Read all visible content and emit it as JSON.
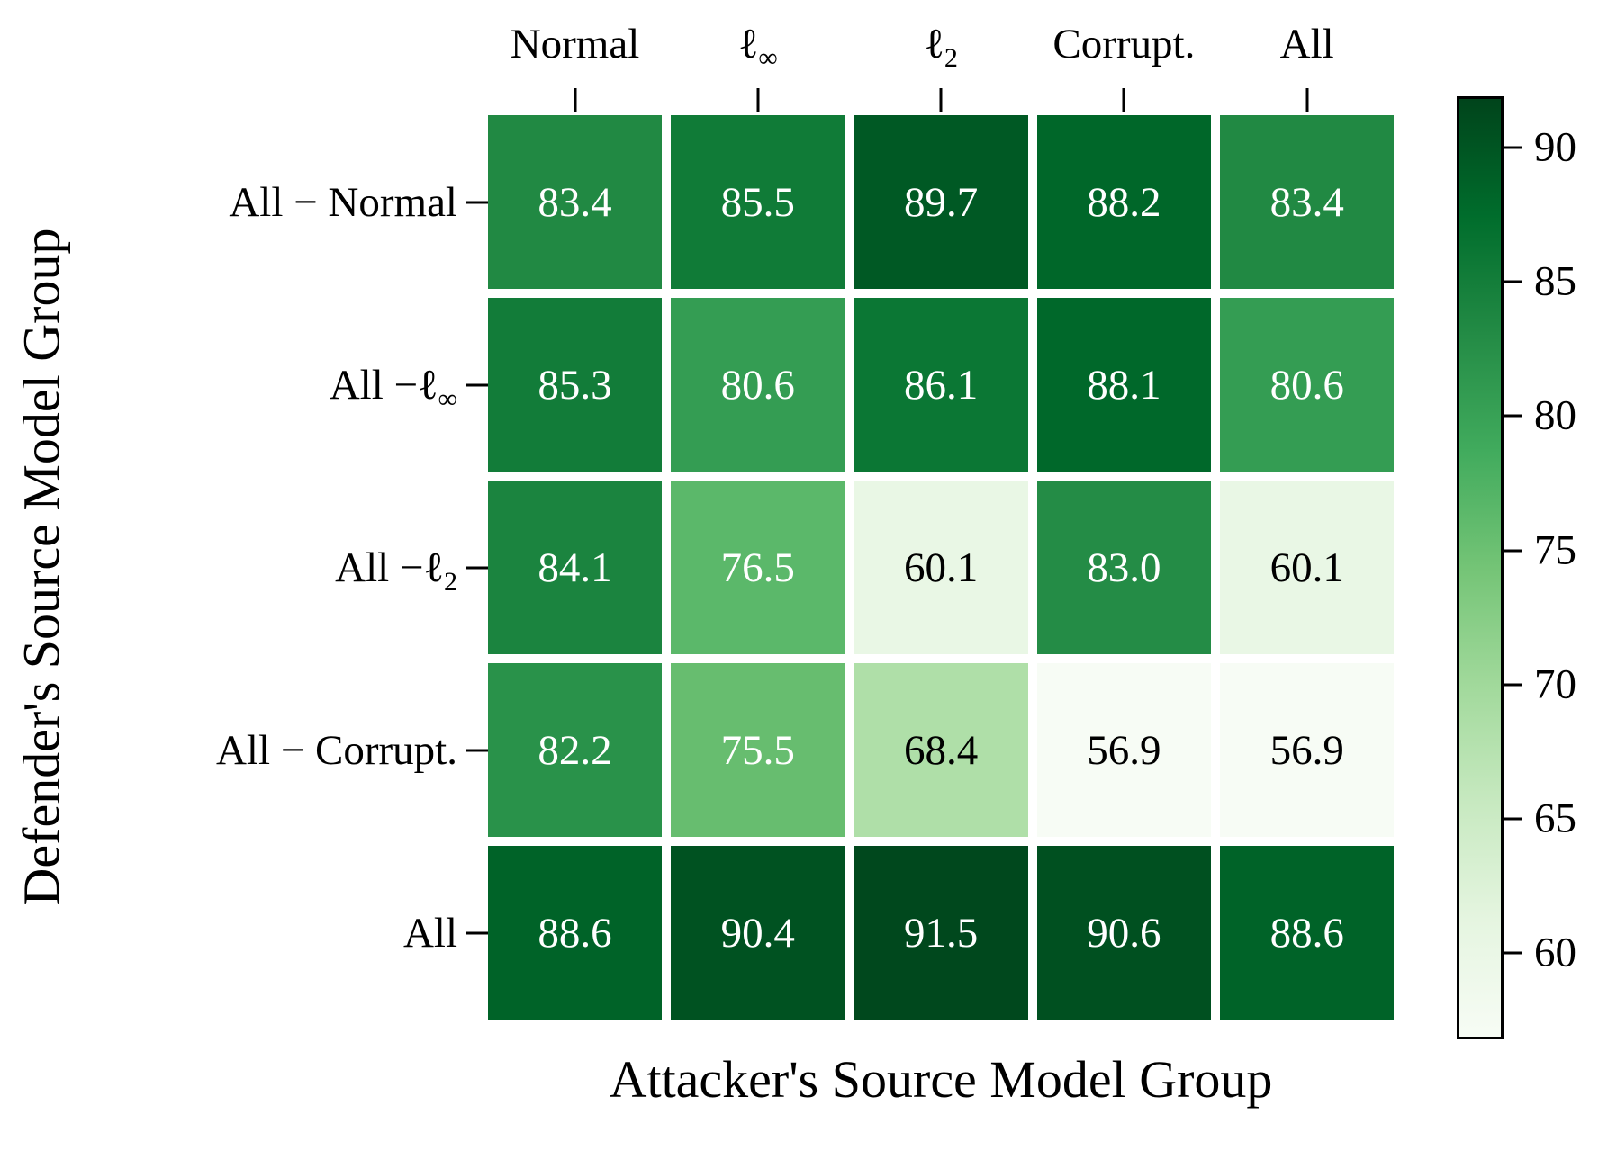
{
  "chart_data": {
    "type": "heatmap",
    "xlabel": "Attacker's Source Model Group",
    "ylabel": "Defender's Source Model Group",
    "columns": [
      {
        "base": "Normal",
        "sub": ""
      },
      {
        "base": "ℓ",
        "sub": "∞"
      },
      {
        "base": "ℓ",
        "sub": "2"
      },
      {
        "base": "Corrupt.",
        "sub": ""
      },
      {
        "base": "All",
        "sub": ""
      }
    ],
    "rows": [
      {
        "base": "All − Normal",
        "sub": ""
      },
      {
        "base": "All −ℓ",
        "sub": "∞"
      },
      {
        "base": "All −ℓ",
        "sub": "2"
      },
      {
        "base": "All − Corrupt.",
        "sub": ""
      },
      {
        "base": "All",
        "sub": ""
      }
    ],
    "values": [
      [
        83.4,
        85.5,
        89.7,
        88.2,
        83.4
      ],
      [
        85.3,
        80.6,
        86.1,
        88.1,
        80.6
      ],
      [
        84.1,
        76.5,
        60.1,
        83.0,
        60.1
      ],
      [
        82.2,
        75.5,
        68.4,
        56.9,
        56.9
      ],
      [
        88.6,
        90.4,
        91.5,
        90.6,
        88.6
      ]
    ],
    "labels": [
      [
        "83.4",
        "85.5",
        "89.7",
        "88.2",
        "83.4"
      ],
      [
        "85.3",
        "80.6",
        "86.1",
        "88.1",
        "80.6"
      ],
      [
        "84.1",
        "76.5",
        "60.1",
        "83.0",
        "60.1"
      ],
      [
        "82.2",
        "75.5",
        "68.4",
        "56.9",
        "56.9"
      ],
      [
        "88.6",
        "90.4",
        "91.5",
        "90.6",
        "88.6"
      ]
    ],
    "colormap": "Greens",
    "colormap_stops": [
      "#f7fcf5",
      "#e5f5e0",
      "#c7e9c0",
      "#a1d99b",
      "#74c476",
      "#41ab5d",
      "#238b45",
      "#006d2c",
      "#00441b"
    ],
    "vmin": 56.8,
    "vmax": 91.9,
    "colorbar_ticks": [
      90,
      85,
      80,
      75,
      70,
      65,
      60
    ],
    "annotation_text_colors": {
      "light_cells": "#000000",
      "dark_cells": "#ffffff"
    },
    "text_color_threshold": 70,
    "grid_gap_color": "#ffffff",
    "legend_position": "right-colorbar"
  }
}
